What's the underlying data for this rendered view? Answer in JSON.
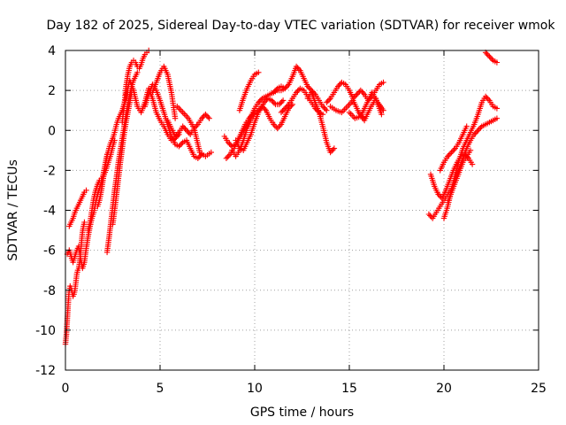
{
  "chart_data": {
    "type": "scatter",
    "title": "Day 182 of 2025, Sidereal Day-to-day VTEC variation (SDTVAR) for receiver wmok",
    "xlabel": "GPS time / hours",
    "ylabel": "SDTVAR / TECUs",
    "xlim": [
      0,
      25
    ],
    "ylim": [
      -12,
      4
    ],
    "xticks": [
      0,
      5,
      10,
      15,
      20,
      25
    ],
    "yticks": [
      -12,
      -10,
      -8,
      -6,
      -4,
      -2,
      0,
      2,
      4
    ],
    "grid": true,
    "legend": "none",
    "marker": "plus",
    "color": "#ff0000",
    "series": [
      {
        "x": [
          0.0,
          0.05,
          0.1,
          0.15,
          0.2,
          0.25,
          0.3,
          0.35,
          0.4,
          0.45,
          0.5,
          0.55,
          0.6,
          0.65,
          0.7,
          0.75,
          0.8,
          0.85,
          0.9,
          0.95,
          1.0
        ],
        "y": [
          -10.7,
          -10.2,
          -9.4,
          -8.6,
          -8.0,
          -7.8,
          -7.9,
          -8.1,
          -8.3,
          -8.2,
          -8.0,
          -7.6,
          -7.2,
          -7.0,
          -6.9,
          -6.6,
          -6.1,
          -5.6,
          -5.1,
          -4.8,
          -4.6
        ]
      },
      {
        "x": [
          0.1,
          0.2,
          0.3,
          0.4,
          0.5,
          0.6,
          0.7,
          0.8,
          0.9,
          1.0,
          1.1,
          1.2,
          1.3,
          1.4,
          1.5,
          1.6,
          1.7,
          1.8,
          1.9,
          2.0,
          2.1,
          2.2
        ],
        "y": [
          -6.2,
          -6.0,
          -6.3,
          -6.6,
          -6.3,
          -6.0,
          -5.8,
          -6.4,
          -6.9,
          -6.6,
          -5.9,
          -5.3,
          -4.8,
          -4.4,
          -4.1,
          -3.6,
          -3.2,
          -2.9,
          -2.6,
          -2.2,
          -1.7,
          -1.2
        ]
      },
      {
        "x": [
          0.2,
          0.3,
          0.4,
          0.5,
          0.6,
          0.7,
          0.8,
          0.9,
          1.0,
          1.1
        ],
        "y": [
          -4.8,
          -4.6,
          -4.4,
          -4.1,
          -3.9,
          -3.7,
          -3.5,
          -3.3,
          -3.1,
          -3.0
        ]
      },
      {
        "x": [
          1.2,
          1.3,
          1.4,
          1.5,
          1.6,
          1.7,
          1.8,
          1.9,
          2.0,
          2.1,
          2.2,
          2.3,
          2.4,
          2.5,
          2.6
        ],
        "y": [
          -5.0,
          -4.6,
          -4.0,
          -3.4,
          -3.0,
          -2.7,
          -2.5,
          -2.4,
          -2.3,
          -2.1,
          -1.8,
          -1.5,
          -1.2,
          -0.8,
          -0.5
        ]
      },
      {
        "x": [
          1.7,
          1.8,
          1.9,
          2.0,
          2.1,
          2.2,
          2.3,
          2.4,
          2.5,
          2.6,
          2.7,
          2.8,
          2.9,
          3.0,
          3.1,
          3.2,
          3.3
        ],
        "y": [
          -3.8,
          -3.5,
          -3.0,
          -2.4,
          -1.8,
          -1.3,
          -0.9,
          -0.6,
          -0.4,
          -0.1,
          0.3,
          0.6,
          0.8,
          1.0,
          1.3,
          1.6,
          1.9
        ]
      },
      {
        "x": [
          2.2,
          2.3,
          2.4,
          2.5,
          2.6,
          2.7,
          2.8,
          2.9,
          3.0,
          3.1,
          3.2,
          3.3,
          3.4,
          3.5,
          3.6,
          3.7,
          3.8
        ],
        "y": [
          -6.1,
          -5.4,
          -4.6,
          -3.8,
          -3.0,
          -2.3,
          -1.6,
          -1.0,
          -0.4,
          0.2,
          0.8,
          1.3,
          1.8,
          2.2,
          2.5,
          2.7,
          2.9
        ]
      },
      {
        "x": [
          2.5,
          2.6,
          2.7,
          2.8,
          2.9,
          3.0,
          3.1,
          3.2,
          3.3,
          3.4,
          3.5
        ],
        "y": [
          -4.7,
          -4.0,
          -3.2,
          -2.4,
          -1.6,
          -0.9,
          -0.2,
          0.4,
          0.9,
          1.4,
          1.9
        ]
      },
      {
        "x": [
          3.0,
          3.1,
          3.2,
          3.3,
          3.4,
          3.5,
          3.6,
          3.7,
          3.8,
          3.9,
          4.0,
          4.1,
          4.2,
          4.3,
          4.4
        ],
        "y": [
          0.4,
          1.2,
          2.2,
          2.8,
          3.2,
          3.4,
          3.5,
          3.4,
          3.2,
          3.1,
          3.3,
          3.6,
          3.8,
          3.9,
          4.0
        ]
      },
      {
        "x": [
          3.2,
          3.4,
          3.6,
          3.8,
          4.0,
          4.2,
          4.4,
          4.6,
          4.8,
          5.0,
          5.2,
          5.4,
          5.6,
          5.8,
          6.0
        ],
        "y": [
          1.8,
          2.5,
          2.0,
          1.2,
          0.9,
          1.4,
          2.1,
          1.6,
          0.9,
          0.5,
          0.2,
          -0.2,
          -0.5,
          -0.4,
          -0.2
        ]
      },
      {
        "x": [
          4.2,
          4.4,
          4.6,
          4.8,
          5.0,
          5.2,
          5.4,
          5.6,
          5.8,
          6.0,
          6.2,
          6.4,
          6.6,
          6.8,
          7.0,
          7.2
        ],
        "y": [
          1.2,
          1.8,
          2.3,
          2.0,
          1.5,
          0.9,
          0.3,
          -0.3,
          -0.7,
          -0.8,
          -0.6,
          -0.5,
          -0.9,
          -1.3,
          -1.4,
          -1.2
        ]
      },
      {
        "x": [
          4.6,
          4.8,
          5.0,
          5.2,
          5.4,
          5.6,
          5.8
        ],
        "y": [
          1.9,
          2.4,
          2.9,
          3.2,
          2.8,
          1.9,
          0.6
        ]
      },
      {
        "x": [
          5.4,
          5.6,
          5.8,
          6.0,
          6.2,
          6.4,
          6.6,
          6.8,
          7.0,
          7.2,
          7.4,
          7.6
        ],
        "y": [
          0.5,
          0.1,
          -0.3,
          -0.1,
          0.2,
          0.0,
          -0.2,
          0.1,
          0.3,
          0.6,
          0.8,
          0.6
        ]
      },
      {
        "x": [
          5.9,
          6.2,
          6.5,
          6.8,
          7.1,
          7.4,
          7.7
        ],
        "y": [
          1.2,
          0.9,
          0.6,
          0.1,
          -1.1,
          -1.3,
          -1.1
        ]
      },
      {
        "x": [
          8.4,
          8.6,
          8.8,
          9.0,
          9.2,
          9.4,
          9.6,
          9.8,
          10.0,
          10.2,
          10.4,
          10.6,
          10.8,
          11.0,
          11.2,
          11.4,
          11.6
        ],
        "y": [
          -0.3,
          -0.6,
          -0.8,
          -0.7,
          -0.4,
          -0.1,
          0.3,
          0.7,
          1.1,
          1.4,
          1.6,
          1.7,
          1.8,
          1.9,
          2.0,
          2.0,
          2.1
        ]
      },
      {
        "x": [
          8.5,
          8.7,
          8.9,
          9.1,
          9.3,
          9.5,
          9.7,
          9.9,
          10.1,
          10.3,
          10.5,
          10.7,
          10.9,
          11.1,
          11.3,
          11.5
        ],
        "y": [
          -1.4,
          -1.2,
          -0.9,
          -0.5,
          -0.1,
          0.3,
          0.6,
          0.8,
          0.9,
          1.1,
          1.4,
          1.6,
          1.5,
          1.3,
          1.3,
          1.5
        ]
      },
      {
        "x": [
          8.8,
          9.0,
          9.2,
          9.4,
          9.6,
          9.8,
          10.0
        ],
        "y": [
          -1.0,
          -1.3,
          -1.0,
          -0.5,
          0.1,
          0.5,
          0.8
        ]
      },
      {
        "x": [
          9.0,
          9.2,
          9.4,
          9.6,
          9.8,
          10.0,
          10.2,
          10.4,
          10.6,
          10.8,
          11.0,
          11.2,
          11.4,
          11.6,
          11.8,
          12.0
        ],
        "y": [
          -0.5,
          -0.9,
          -1.0,
          -0.6,
          -0.2,
          0.4,
          0.9,
          1.2,
          1.0,
          0.6,
          0.3,
          0.1,
          0.3,
          0.7,
          1.1,
          1.3
        ]
      },
      {
        "x": [
          9.2,
          9.4,
          9.6,
          9.8,
          10.0,
          10.2
        ],
        "y": [
          1.0,
          1.6,
          2.1,
          2.5,
          2.8,
          2.9
        ]
      },
      {
        "x": [
          11.0,
          11.2,
          11.4,
          11.6,
          11.8,
          12.0,
          12.2,
          12.4,
          12.6,
          12.8,
          13.0,
          13.2,
          13.4,
          13.6,
          13.8
        ],
        "y": [
          1.9,
          2.1,
          2.2,
          2.1,
          2.3,
          2.7,
          3.2,
          3.0,
          2.6,
          2.2,
          2.0,
          1.8,
          1.5,
          1.2,
          1.0
        ]
      },
      {
        "x": [
          11.4,
          11.6,
          11.8,
          12.0,
          12.2,
          12.4,
          12.6,
          12.8,
          13.0,
          13.2,
          13.4,
          13.6
        ],
        "y": [
          0.9,
          1.1,
          1.3,
          1.6,
          1.9,
          2.1,
          2.0,
          1.7,
          1.4,
          1.1,
          0.9,
          0.8
        ]
      },
      {
        "x": [
          12.8,
          13.0,
          13.2,
          13.4,
          13.6,
          13.8,
          14.0,
          14.2
        ],
        "y": [
          1.6,
          1.9,
          1.4,
          0.9,
          0.2,
          -0.6,
          -1.1,
          -0.9
        ]
      },
      {
        "x": [
          13.8,
          14.0,
          14.2,
          14.4,
          14.6,
          14.8,
          15.0,
          15.2,
          15.4,
          15.6,
          15.8,
          16.0,
          16.2,
          16.4,
          16.6,
          16.8
        ],
        "y": [
          1.4,
          1.6,
          1.9,
          2.2,
          2.4,
          2.3,
          2.0,
          1.6,
          1.8,
          2.0,
          1.8,
          1.5,
          1.7,
          2.0,
          2.3,
          2.4
        ]
      },
      {
        "x": [
          14.0,
          14.3,
          14.6,
          14.9,
          15.2,
          15.5,
          15.8,
          16.1,
          16.4,
          16.7
        ],
        "y": [
          1.2,
          1.0,
          0.9,
          1.2,
          1.5,
          0.9,
          0.5,
          1.1,
          1.6,
          0.8
        ]
      },
      {
        "x": [
          15.0,
          15.3,
          15.6,
          15.9,
          16.2,
          16.5,
          16.8
        ],
        "y": [
          0.9,
          0.6,
          0.7,
          1.3,
          1.9,
          1.4,
          1.0
        ]
      },
      {
        "x": [
          19.2,
          19.4,
          19.6,
          19.8,
          20.0,
          20.2,
          20.4,
          20.6,
          20.8,
          21.0,
          21.2,
          21.4,
          21.6,
          21.8,
          22.0,
          22.2,
          22.4,
          22.6,
          22.8
        ],
        "y": [
          -4.2,
          -4.4,
          -4.1,
          -3.8,
          -3.5,
          -3.2,
          -2.9,
          -2.4,
          -1.9,
          -1.4,
          -0.9,
          -0.5,
          -0.2,
          0.0,
          0.2,
          0.3,
          0.4,
          0.5,
          0.6
        ]
      },
      {
        "x": [
          19.3,
          19.5,
          19.7,
          19.9,
          20.1,
          20.3,
          20.5,
          20.7,
          20.9,
          21.1,
          21.3,
          21.5
        ],
        "y": [
          -2.2,
          -2.8,
          -3.2,
          -3.4,
          -3.0,
          -2.5,
          -2.0,
          -1.6,
          -1.3,
          -1.2,
          -1.4,
          -1.7
        ]
      },
      {
        "x": [
          19.8,
          20.0,
          20.2,
          20.4,
          20.6,
          20.8,
          21.0,
          21.2
        ],
        "y": [
          -2.0,
          -1.6,
          -1.3,
          -1.1,
          -0.9,
          -0.6,
          -0.2,
          0.2
        ]
      },
      {
        "x": [
          20.0,
          20.2,
          20.4,
          20.6,
          20.8,
          21.0,
          21.2,
          21.4,
          21.6,
          21.8,
          22.0,
          22.2,
          22.4,
          22.6,
          22.8
        ],
        "y": [
          -4.4,
          -3.8,
          -3.0,
          -2.2,
          -1.5,
          -0.9,
          -0.5,
          -0.1,
          0.3,
          0.8,
          1.4,
          1.7,
          1.5,
          1.2,
          1.1
        ]
      },
      {
        "x": [
          20.2,
          20.4,
          20.6,
          20.8,
          21.0,
          21.2,
          21.4
        ],
        "y": [
          -3.6,
          -3.1,
          -2.6,
          -2.1,
          -1.6,
          -1.3,
          -1.0
        ]
      },
      {
        "x": [
          22.2,
          22.4,
          22.6,
          22.8
        ],
        "y": [
          3.9,
          3.7,
          3.5,
          3.4
        ]
      }
    ]
  }
}
